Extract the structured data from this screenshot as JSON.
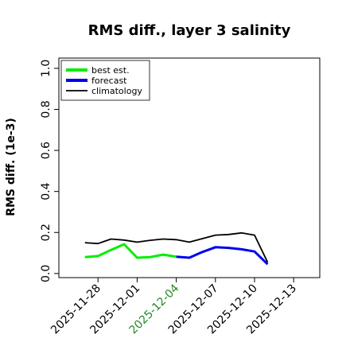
{
  "chart_data": {
    "type": "line",
    "title": "RMS diff., layer 3 salinity",
    "xlabel": "",
    "ylabel": "RMS diff. (1e-3)",
    "xlim": [
      "2025-11-25",
      "2025-12-15"
    ],
    "ylim": [
      -0.02,
      1.05
    ],
    "grid": false,
    "legend_position": "top-left",
    "x_ticks": [
      "2025-11-28",
      "2025-12-01",
      "2025-12-04",
      "2025-12-07",
      "2025-12-10",
      "2025-12-13"
    ],
    "y_ticks": [
      "0.0",
      "0.2",
      "0.4",
      "0.6",
      "0.8",
      "1.0"
    ],
    "highlight_tick": "2025-12-04",
    "highlight_color": "#228B22",
    "series": [
      {
        "name": "best est.",
        "color": "#00ee00",
        "x": [
          "2025-11-27",
          "2025-11-28",
          "2025-11-29",
          "2025-11-30",
          "2025-12-01",
          "2025-12-02",
          "2025-12-03",
          "2025-12-04"
        ],
        "y": [
          0.08,
          0.085,
          0.115,
          0.143,
          0.077,
          0.08,
          0.092,
          0.082
        ]
      },
      {
        "name": "forecast",
        "color": "#0000ee",
        "x": [
          "2025-12-04",
          "2025-12-05",
          "2025-12-06",
          "2025-12-07",
          "2025-12-08",
          "2025-12-09",
          "2025-12-10",
          "2025-12-11"
        ],
        "y": [
          0.082,
          0.077,
          0.105,
          0.128,
          0.125,
          0.118,
          0.107,
          0.045
        ]
      },
      {
        "name": "climatology",
        "color": "#000000",
        "x": [
          "2025-11-27",
          "2025-11-28",
          "2025-11-29",
          "2025-11-30",
          "2025-12-01",
          "2025-12-02",
          "2025-12-03",
          "2025-12-04",
          "2025-12-05",
          "2025-12-06",
          "2025-12-07",
          "2025-12-08",
          "2025-12-09",
          "2025-12-10",
          "2025-12-11"
        ],
        "y": [
          0.15,
          0.146,
          0.168,
          0.163,
          0.153,
          0.162,
          0.168,
          0.165,
          0.153,
          0.17,
          0.187,
          0.19,
          0.198,
          0.187,
          0.055
        ]
      }
    ]
  }
}
